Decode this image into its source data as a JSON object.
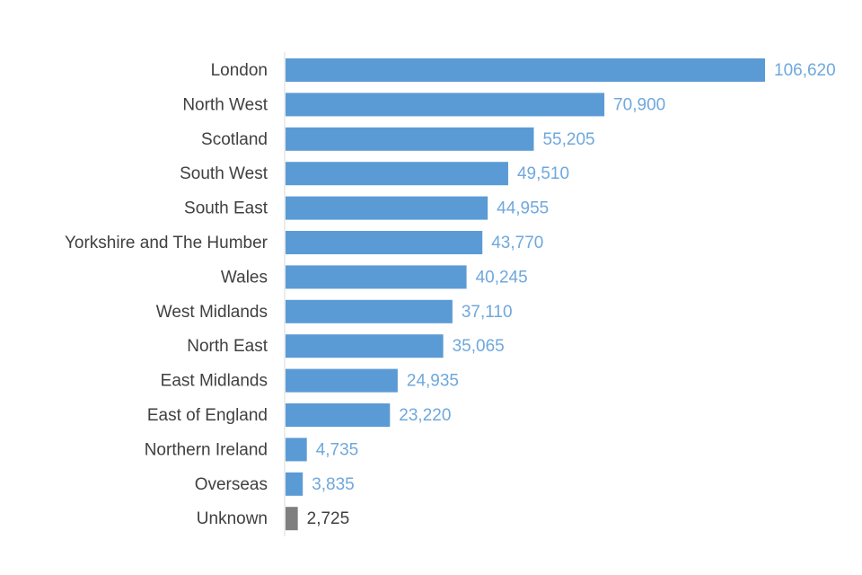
{
  "chart_data": {
    "type": "bar",
    "orientation": "horizontal",
    "categories": [
      "London",
      "North West",
      "Scotland",
      "South West",
      "South East",
      "Yorkshire and The Humber",
      "Wales",
      "West Midlands",
      "North East",
      "East Midlands",
      "East of England",
      "Northern Ireland",
      "Overseas",
      "Unknown"
    ],
    "values": [
      106620,
      70900,
      55205,
      49510,
      44955,
      43770,
      40245,
      37110,
      35065,
      24935,
      23220,
      4735,
      3835,
      2725
    ],
    "value_labels": [
      "106,620",
      "70,900",
      "55,205",
      "49,510",
      "44,955",
      "43,770",
      "40,245",
      "37,110",
      "35,065",
      "24,935",
      "23,220",
      "4,735",
      "3,835",
      "2,725"
    ],
    "colors": [
      "#5b9bd5",
      "#5b9bd5",
      "#5b9bd5",
      "#5b9bd5",
      "#5b9bd5",
      "#5b9bd5",
      "#5b9bd5",
      "#5b9bd5",
      "#5b9bd5",
      "#5b9bd5",
      "#5b9bd5",
      "#5b9bd5",
      "#5b9bd5",
      "#7f7f7f"
    ],
    "label_colors": [
      "#6fa8dc",
      "#6fa8dc",
      "#6fa8dc",
      "#6fa8dc",
      "#6fa8dc",
      "#6fa8dc",
      "#6fa8dc",
      "#6fa8dc",
      "#6fa8dc",
      "#6fa8dc",
      "#6fa8dc",
      "#6fa8dc",
      "#6fa8dc",
      "#404040"
    ]
  }
}
